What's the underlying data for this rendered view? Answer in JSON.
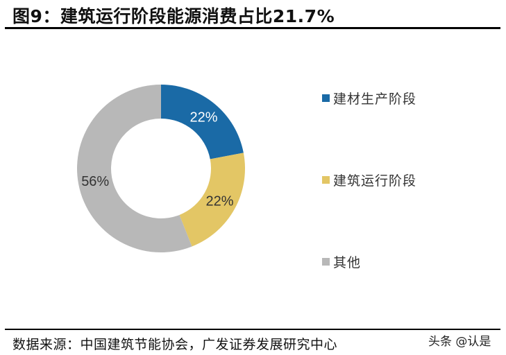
{
  "header": {
    "title": "图9：建筑运行阶段能源消费占比21.7%"
  },
  "chart_data": {
    "type": "pie",
    "subtype": "donut",
    "title": "图9：建筑运行阶段能源消费占比21.7%",
    "categories": [
      "建材生产阶段",
      "建筑运行阶段",
      "其他"
    ],
    "values": [
      22,
      22,
      56
    ],
    "labels": [
      "22%",
      "22%",
      "56%"
    ],
    "colors": [
      "#1a6aa6",
      "#e3c665",
      "#b8b8b8"
    ],
    "label_colors": [
      "#ffffff",
      "#333333",
      "#333333"
    ],
    "legend_position": "right",
    "start_angle": 0,
    "direction": "clockwise"
  },
  "legend": {
    "items": [
      {
        "label": "建材生产阶段",
        "color": "#1a6aa6"
      },
      {
        "label": "建筑运行阶段",
        "color": "#e3c665"
      },
      {
        "label": "其他",
        "color": "#b8b8b8"
      }
    ]
  },
  "footer": {
    "source": "数据来源：中国建筑节能协会，广发证券发展研究中心",
    "watermark": "头条 @认是"
  }
}
